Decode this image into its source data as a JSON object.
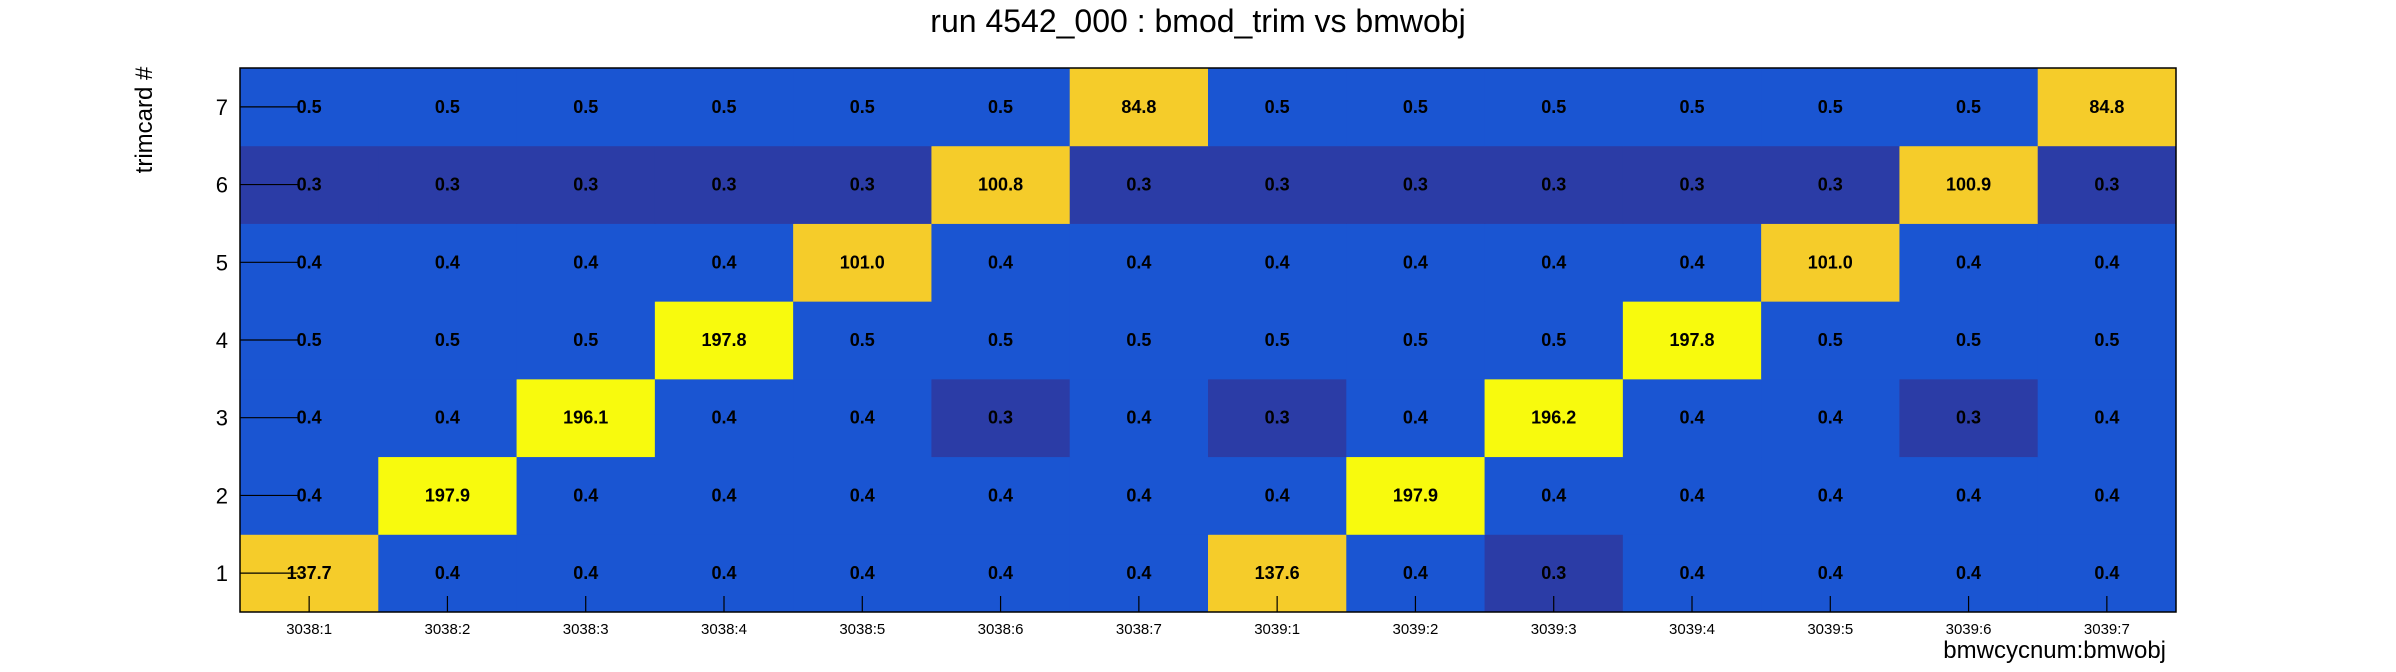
{
  "chart_data": {
    "type": "heatmap",
    "title": "run 4542_000 : bmod_trim vs bmwobj",
    "xlabel": "bmwcycnum:bmwobj",
    "ylabel": "trimcard #",
    "x_categories": [
      "3038:1",
      "3038:2",
      "3038:3",
      "3038:4",
      "3038:5",
      "3038:6",
      "3038:7",
      "3039:1",
      "3039:2",
      "3039:3",
      "3039:4",
      "3039:5",
      "3039:6",
      "3039:7"
    ],
    "y_categories": [
      "1",
      "2",
      "3",
      "4",
      "5",
      "6",
      "7"
    ],
    "values": [
      [
        137.7,
        0.4,
        0.4,
        0.4,
        0.4,
        0.4,
        0.4,
        137.6,
        0.4,
        0.3,
        0.4,
        0.4,
        0.4,
        0.4
      ],
      [
        0.4,
        197.9,
        0.4,
        0.4,
        0.4,
        0.4,
        0.4,
        0.4,
        197.9,
        0.4,
        0.4,
        0.4,
        0.4,
        0.4
      ],
      [
        0.4,
        0.4,
        196.1,
        0.4,
        0.4,
        0.3,
        0.4,
        0.3,
        0.4,
        196.2,
        0.4,
        0.4,
        0.3,
        0.4
      ],
      [
        0.5,
        0.5,
        0.5,
        197.8,
        0.5,
        0.5,
        0.5,
        0.5,
        0.5,
        0.5,
        197.8,
        0.5,
        0.5,
        0.5
      ],
      [
        0.4,
        0.4,
        0.4,
        0.4,
        101.0,
        0.4,
        0.4,
        0.4,
        0.4,
        0.4,
        0.4,
        101.0,
        0.4,
        0.4
      ],
      [
        0.3,
        0.3,
        0.3,
        0.3,
        0.3,
        100.8,
        0.3,
        0.3,
        0.3,
        0.3,
        0.3,
        0.3,
        100.9,
        0.3
      ],
      [
        0.5,
        0.5,
        0.5,
        0.5,
        0.5,
        0.5,
        84.8,
        0.5,
        0.5,
        0.5,
        0.5,
        0.5,
        0.5,
        84.8
      ]
    ],
    "value_format": "0.0",
    "colors": {
      "low": "#2b3ca6",
      "mid_low": "#1a55d2",
      "mid": "#f5cc2a",
      "high": "#f8fa0d"
    }
  }
}
